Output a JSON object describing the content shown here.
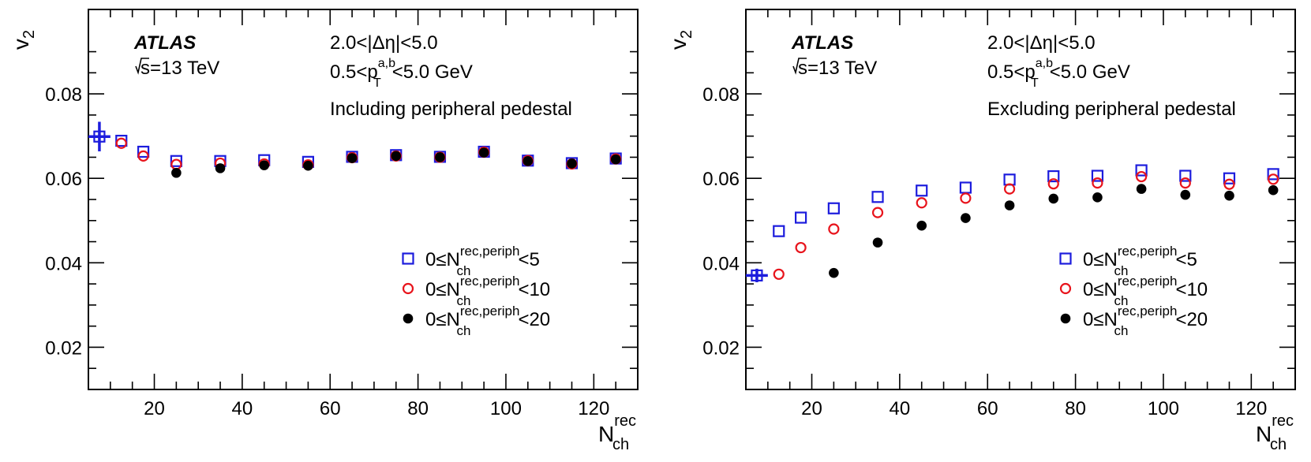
{
  "chart_data": [
    {
      "type": "scatter",
      "experiment": "ATLAS",
      "energy": "=13 TeV",
      "energy_prefix": "s",
      "cut_eta": "2.0<|Δη|<5.0",
      "cut_pt_prefix": "0.5<p",
      "cut_pt_sub": "T",
      "cut_pt_sup": "a,b",
      "cut_pt_suffix": "<5.0 GeV",
      "annotation": "Including peripheral pedestal",
      "ylabel_main": "v",
      "ylabel_sub": "2",
      "xlabel_main": "N",
      "xlabel_sub": "ch",
      "xlabel_sup": "rec",
      "xlim": [
        5,
        130
      ],
      "ylim": [
        0.01,
        0.1
      ],
      "xticks": [
        "20",
        "40",
        "60",
        "80",
        "100",
        "120"
      ],
      "yticks": [
        "0.02",
        "0.04",
        "0.06",
        "0.08"
      ],
      "series": [
        {
          "name": "0≤N<5",
          "legend_prefix": "0≤N",
          "legend_sub": "ch",
          "legend_sup": "rec,periph",
          "legend_suffix": "<5",
          "marker": "open-square",
          "color": "#1c1cdd",
          "x": [
            7.5,
            12.5,
            17.5,
            25,
            35,
            45,
            55,
            65,
            75,
            85,
            95,
            105,
            115,
            125
          ],
          "y": [
            0.0699,
            0.0689,
            0.0663,
            0.0641,
            0.0641,
            0.0643,
            0.0639,
            0.0651,
            0.0655,
            0.0651,
            0.0663,
            0.0642,
            0.0636,
            0.0647
          ],
          "err": [
            0.0035,
            0.0006,
            0.0004,
            0.0003,
            0.0003,
            0.0003,
            0.0003,
            0.0003,
            0.0003,
            0.0003,
            0.0003,
            0.0003,
            0.0003,
            0.0003
          ]
        },
        {
          "name": "0≤N<10",
          "legend_prefix": "0≤N",
          "legend_sub": "ch",
          "legend_sup": "rec,periph",
          "legend_suffix": "<10",
          "marker": "open-circle",
          "color": "#e8141c",
          "x": [
            12.5,
            17.5,
            25,
            35,
            45,
            55,
            65,
            75,
            85,
            95,
            105,
            115,
            125
          ],
          "y": [
            0.0683,
            0.0653,
            0.0633,
            0.0636,
            0.0634,
            0.0632,
            0.0649,
            0.0653,
            0.065,
            0.0662,
            0.0642,
            0.0634,
            0.0646
          ],
          "err": [
            0,
            0,
            0,
            0,
            0,
            0,
            0,
            0,
            0,
            0,
            0,
            0,
            0
          ]
        },
        {
          "name": "0≤N<20",
          "legend_prefix": "0≤N",
          "legend_sub": "ch",
          "legend_sup": "rec,periph",
          "legend_suffix": "<20",
          "marker": "filled-circle",
          "color": "#000000",
          "x": [
            25,
            35,
            45,
            55,
            65,
            75,
            85,
            95,
            105,
            115,
            125
          ],
          "y": [
            0.0613,
            0.0624,
            0.0631,
            0.063,
            0.0648,
            0.0653,
            0.065,
            0.0661,
            0.0641,
            0.0635,
            0.0645
          ],
          "err": [
            0,
            0,
            0,
            0,
            0,
            0,
            0,
            0,
            0,
            0,
            0
          ]
        }
      ]
    },
    {
      "type": "scatter",
      "experiment": "ATLAS",
      "energy": "=13 TeV",
      "energy_prefix": "s",
      "cut_eta": "2.0<|Δη|<5.0",
      "cut_pt_prefix": "0.5<p",
      "cut_pt_sub": "T",
      "cut_pt_sup": "a,b",
      "cut_pt_suffix": "<5.0 GeV",
      "annotation": "Excluding peripheral pedestal",
      "ylabel_main": "v",
      "ylabel_sub": "2",
      "xlabel_main": "N",
      "xlabel_sub": "ch",
      "xlabel_sup": "rec",
      "xlim": [
        5,
        130
      ],
      "ylim": [
        0.01,
        0.1
      ],
      "xticks": [
        "20",
        "40",
        "60",
        "80",
        "100",
        "120"
      ],
      "yticks": [
        "0.02",
        "0.04",
        "0.06",
        "0.08"
      ],
      "series": [
        {
          "name": "0≤N<5",
          "legend_prefix": "0≤N",
          "legend_sub": "ch",
          "legend_sup": "rec,periph",
          "legend_suffix": "<5",
          "marker": "open-square",
          "color": "#1c1cdd",
          "x": [
            7.5,
            12.5,
            17.5,
            25,
            35,
            45,
            55,
            65,
            75,
            85,
            95,
            105,
            115,
            125
          ],
          "y": [
            0.037,
            0.0475,
            0.0507,
            0.0529,
            0.0556,
            0.0571,
            0.0578,
            0.0597,
            0.0605,
            0.0606,
            0.0619,
            0.0606,
            0.06,
            0.061
          ],
          "err": [
            0.0016,
            0.0004,
            0.0003,
            0.0003,
            0.0003,
            0.0003,
            0.0003,
            0.0003,
            0.0003,
            0.0003,
            0.0003,
            0.0003,
            0.0003,
            0.0003
          ]
        },
        {
          "name": "0≤N<10",
          "legend_prefix": "0≤N",
          "legend_sub": "ch",
          "legend_sup": "rec,periph",
          "legend_suffix": "<10",
          "marker": "open-circle",
          "color": "#e8141c",
          "x": [
            12.5,
            17.5,
            25,
            35,
            45,
            55,
            65,
            75,
            85,
            95,
            105,
            115,
            125
          ],
          "y": [
            0.0373,
            0.0436,
            0.048,
            0.0519,
            0.0542,
            0.0553,
            0.0575,
            0.0587,
            0.0589,
            0.0604,
            0.0589,
            0.0586,
            0.0598
          ],
          "err": [
            0,
            0,
            0,
            0,
            0,
            0,
            0,
            0,
            0,
            0,
            0,
            0,
            0
          ]
        },
        {
          "name": "0≤N<20",
          "legend_prefix": "0≤N",
          "legend_sub": "ch",
          "legend_sup": "rec,periph",
          "legend_suffix": "<20",
          "marker": "filled-circle",
          "color": "#000000",
          "x": [
            25,
            35,
            45,
            55,
            65,
            75,
            85,
            95,
            105,
            115,
            125
          ],
          "y": [
            0.0376,
            0.0448,
            0.0488,
            0.0506,
            0.0536,
            0.0552,
            0.0555,
            0.0575,
            0.0561,
            0.0559,
            0.0572
          ],
          "err": [
            0,
            0,
            0,
            0,
            0,
            0,
            0,
            0,
            0,
            0,
            0
          ]
        }
      ]
    }
  ]
}
